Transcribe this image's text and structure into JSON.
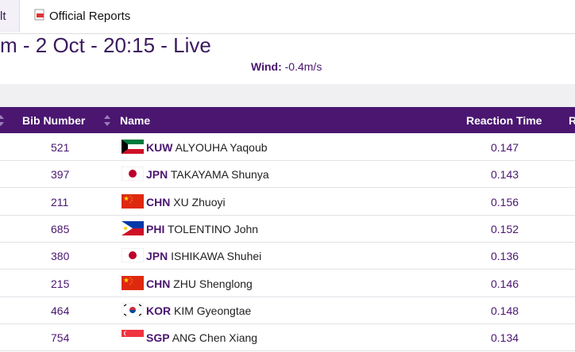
{
  "tabs": [
    "lt",
    "Official Reports"
  ],
  "heading": "m - 2 Oct - 20:15 - Live",
  "wind": {
    "label": "Wind:",
    "value": "-0.4m/s"
  },
  "table": {
    "headers": [
      "Bib Number",
      "Name",
      "Reaction Time",
      "R"
    ],
    "rows": [
      [
        "521",
        "KUW",
        "ALYOUHA Yaqoub",
        "0.147"
      ],
      [
        "397",
        "JPN",
        "TAKAYAMA Shunya",
        "0.143"
      ],
      [
        "211",
        "CHN",
        "XU Zhuoyi",
        "0.156"
      ],
      [
        "685",
        "PHI",
        "TOLENTINO John",
        "0.152"
      ],
      [
        "380",
        "JPN",
        "ISHIKAWA Shuhei",
        "0.136"
      ],
      [
        "215",
        "CHN",
        "ZHU Shenglong",
        "0.146"
      ],
      [
        "464",
        "KOR",
        "KIM Gyeongtae",
        "0.148"
      ],
      [
        "754",
        "SGP",
        "ANG Chen Xiang",
        "0.134"
      ]
    ]
  }
}
